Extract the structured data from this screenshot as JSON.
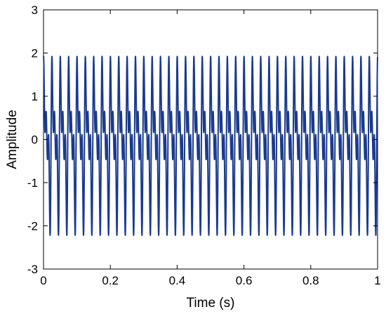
{
  "chart_data": {
    "type": "line",
    "title": "",
    "xlabel": "Time (s)",
    "ylabel": "Amplitude",
    "xlim": [
      0,
      1
    ],
    "ylim": [
      -3,
      3
    ],
    "x_ticks": [
      "0",
      "0.2",
      "0.4",
      "0.6",
      "0.8",
      "1"
    ],
    "y_ticks": [
      "3",
      "2",
      "1",
      "0",
      "-1",
      "-2",
      "-3"
    ],
    "grid": false,
    "legend": "none",
    "series": [
      {
        "color": "#1a3a8f",
        "signal": {
          "duration_s": 1,
          "components": [
            {
              "amplitude": 1.0,
              "frequency_hz": 40,
              "phase_rad": 0.5
            },
            {
              "amplitude": 0.8,
              "frequency_hz": 80,
              "phase_rad": 1.2
            },
            {
              "amplitude": 0.75,
              "frequency_hz": 120,
              "phase_rad": 2.0
            }
          ]
        }
      }
    ]
  }
}
